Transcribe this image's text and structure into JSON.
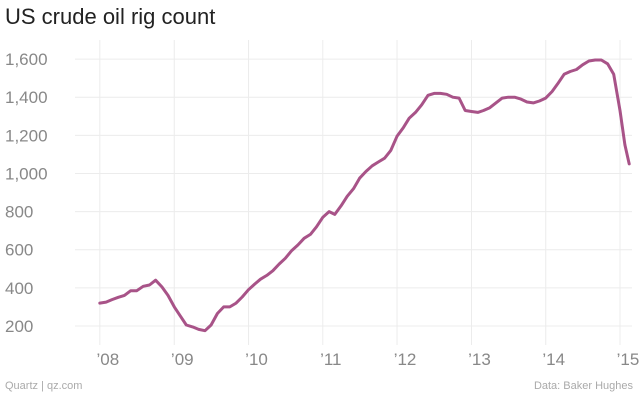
{
  "chart_data": {
    "type": "line",
    "title": "US crude oil rig count",
    "xlabel": "",
    "ylabel": "",
    "ylim": [
      100,
      1700
    ],
    "xlim": [
      "2007-09-01",
      "2015-03-01"
    ],
    "grid": true,
    "yticks": [
      {
        "value": 200,
        "label": "200"
      },
      {
        "value": 400,
        "label": "400"
      },
      {
        "value": 600,
        "label": "600"
      },
      {
        "value": 800,
        "label": "800"
      },
      {
        "value": 1000,
        "label": "1,000"
      },
      {
        "value": 1200,
        "label": "1,200"
      },
      {
        "value": 1400,
        "label": "1,400"
      },
      {
        "value": 1600,
        "label": "1,600"
      }
    ],
    "xticks": [
      {
        "value": "2008-01-01",
        "label": "’08"
      },
      {
        "value": "2009-01-01",
        "label": "’09"
      },
      {
        "value": "2010-01-01",
        "label": "’10"
      },
      {
        "value": "2011-01-01",
        "label": "’11"
      },
      {
        "value": "2012-01-01",
        "label": "’12"
      },
      {
        "value": "2013-01-01",
        "label": "’13"
      },
      {
        "value": "2014-01-01",
        "label": "’14"
      },
      {
        "value": "2015-01-01",
        "label": "’15"
      }
    ],
    "series": [
      {
        "color": "#a85388",
        "points": [
          [
            "2008-01-01",
            320
          ],
          [
            "2008-02-01",
            325
          ],
          [
            "2008-03-01",
            338
          ],
          [
            "2008-04-01",
            350
          ],
          [
            "2008-05-01",
            360
          ],
          [
            "2008-06-01",
            385
          ],
          [
            "2008-07-01",
            385
          ],
          [
            "2008-08-01",
            408
          ],
          [
            "2008-09-01",
            415
          ],
          [
            "2008-10-01",
            440
          ],
          [
            "2008-11-01",
            405
          ],
          [
            "2008-12-01",
            360
          ],
          [
            "2009-01-01",
            300
          ],
          [
            "2009-02-01",
            250
          ],
          [
            "2009-03-01",
            205
          ],
          [
            "2009-04-01",
            195
          ],
          [
            "2009-05-01",
            182
          ],
          [
            "2009-06-01",
            175
          ],
          [
            "2009-07-01",
            205
          ],
          [
            "2009-08-01",
            265
          ],
          [
            "2009-09-01",
            300
          ],
          [
            "2009-10-01",
            300
          ],
          [
            "2009-11-01",
            320
          ],
          [
            "2009-12-01",
            352
          ],
          [
            "2010-01-01",
            390
          ],
          [
            "2010-02-01",
            420
          ],
          [
            "2010-03-01",
            445
          ],
          [
            "2010-04-01",
            465
          ],
          [
            "2010-05-01",
            490
          ],
          [
            "2010-06-01",
            525
          ],
          [
            "2010-07-01",
            555
          ],
          [
            "2010-08-01",
            595
          ],
          [
            "2010-09-01",
            625
          ],
          [
            "2010-10-01",
            660
          ],
          [
            "2010-11-01",
            680
          ],
          [
            "2010-12-01",
            720
          ],
          [
            "2011-01-01",
            770
          ],
          [
            "2011-02-01",
            800
          ],
          [
            "2011-03-01",
            785
          ],
          [
            "2011-04-01",
            830
          ],
          [
            "2011-05-01",
            880
          ],
          [
            "2011-06-01",
            920
          ],
          [
            "2011-07-01",
            975
          ],
          [
            "2011-08-01",
            1010
          ],
          [
            "2011-09-01",
            1040
          ],
          [
            "2011-10-01",
            1060
          ],
          [
            "2011-11-01",
            1080
          ],
          [
            "2011-12-01",
            1120
          ],
          [
            "2012-01-01",
            1195
          ],
          [
            "2012-02-01",
            1240
          ],
          [
            "2012-03-01",
            1290
          ],
          [
            "2012-04-01",
            1320
          ],
          [
            "2012-05-01",
            1360
          ],
          [
            "2012-06-01",
            1410
          ],
          [
            "2012-07-01",
            1420
          ],
          [
            "2012-08-01",
            1420
          ],
          [
            "2012-09-01",
            1415
          ],
          [
            "2012-10-01",
            1400
          ],
          [
            "2012-11-01",
            1395
          ],
          [
            "2012-12-01",
            1330
          ],
          [
            "2013-01-01",
            1325
          ],
          [
            "2013-02-01",
            1320
          ],
          [
            "2013-03-01",
            1330
          ],
          [
            "2013-04-01",
            1345
          ],
          [
            "2013-05-01",
            1370
          ],
          [
            "2013-06-01",
            1395
          ],
          [
            "2013-07-01",
            1400
          ],
          [
            "2013-08-01",
            1400
          ],
          [
            "2013-09-01",
            1390
          ],
          [
            "2013-10-01",
            1375
          ],
          [
            "2013-11-01",
            1370
          ],
          [
            "2013-12-01",
            1380
          ],
          [
            "2014-01-01",
            1395
          ],
          [
            "2014-02-01",
            1430
          ],
          [
            "2014-03-01",
            1470
          ],
          [
            "2014-04-01",
            1520
          ],
          [
            "2014-05-01",
            1535
          ],
          [
            "2014-06-01",
            1545
          ],
          [
            "2014-07-01",
            1570
          ],
          [
            "2014-08-01",
            1590
          ],
          [
            "2014-09-01",
            1595
          ],
          [
            "2014-10-01",
            1595
          ],
          [
            "2014-11-01",
            1575
          ],
          [
            "2014-12-01",
            1520
          ],
          [
            "2015-01-01",
            1330
          ],
          [
            "2015-01-25",
            1150
          ],
          [
            "2015-02-15",
            1050
          ]
        ]
      }
    ]
  },
  "footer": {
    "source_left": "Quartz | qz.com",
    "source_right": "Data: Baker Hughes"
  }
}
